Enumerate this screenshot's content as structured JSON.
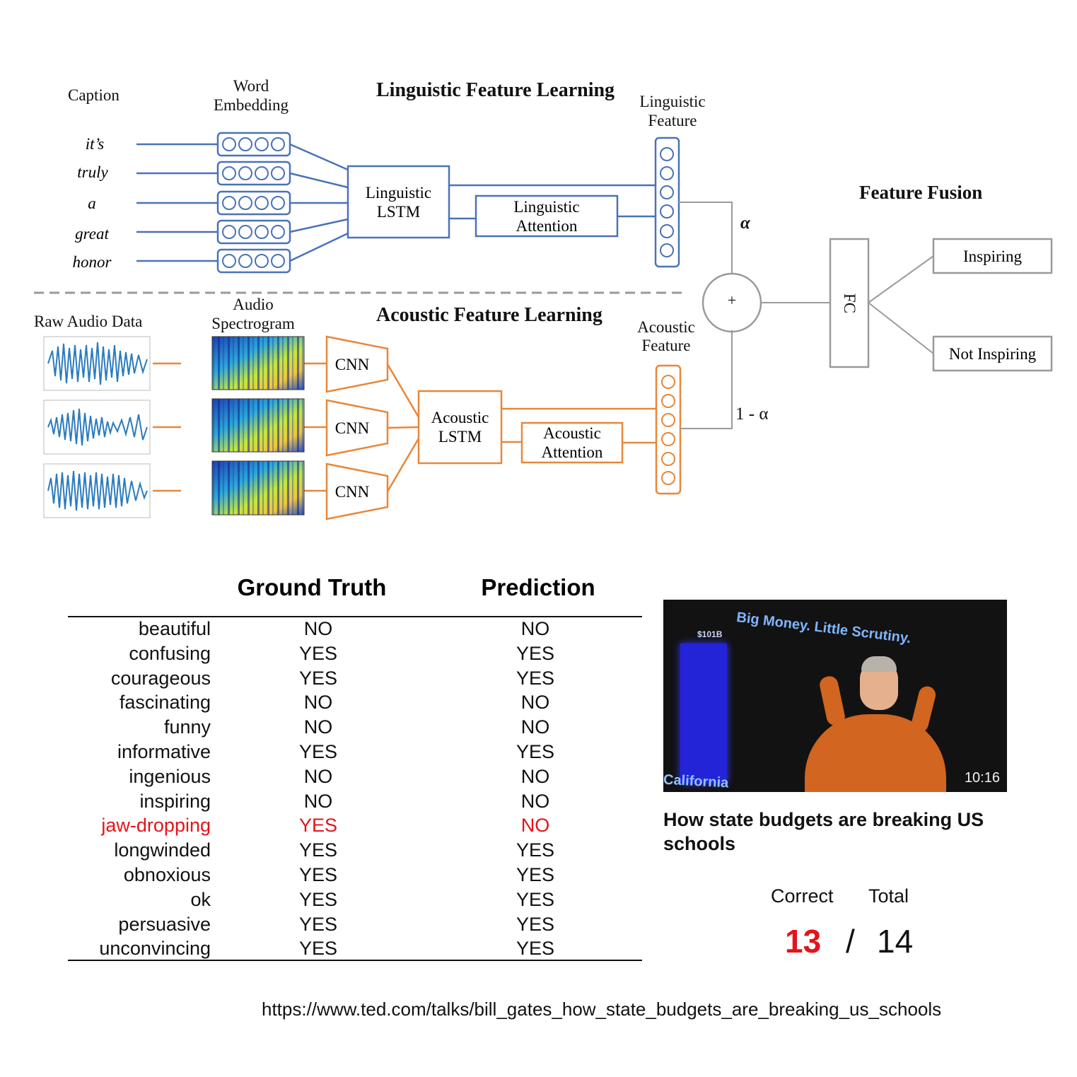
{
  "diagram": {
    "caption_label": "Caption",
    "word_embedding_label": [
      "Word",
      "Embedding"
    ],
    "linguistic_title": "Linguistic Feature Learning",
    "linguistic_feature_label": [
      "Linguistic",
      "Feature"
    ],
    "caption_words": [
      "it’s",
      "truly",
      "a",
      "great",
      "honor"
    ],
    "linguistic_lstm": [
      "Linguistic",
      "LSTM"
    ],
    "linguistic_attention": [
      "Linguistic",
      "Attention"
    ],
    "alpha": "α",
    "one_minus_alpha": "1 - α",
    "plus": "+",
    "feature_fusion_title": "Feature Fusion",
    "fc": "FC",
    "inspiring": "Inspiring",
    "not_inspiring": "Not Inspiring",
    "raw_audio_label": "Raw Audio Data",
    "audio_spectrogram_label": [
      "Audio",
      "Spectrogram"
    ],
    "acoustic_title": "Acoustic Feature Learning",
    "acoustic_feature_label": [
      "Acoustic",
      "Feature"
    ],
    "cnn_labels": [
      "CNN",
      "CNN",
      "CNN"
    ],
    "acoustic_lstm": [
      "Acoustic",
      "LSTM"
    ],
    "acoustic_attention": [
      "Acoustic",
      "Attention"
    ],
    "colors": {
      "linguistic": "#4a72b8",
      "acoustic": "#e8873a",
      "fusion": "#9a9a9a"
    }
  },
  "table": {
    "header_ground_truth": "Ground Truth",
    "header_prediction": "Prediction",
    "rows": [
      {
        "label": "beautiful",
        "gt": "NO",
        "pred": "NO"
      },
      {
        "label": "confusing",
        "gt": "YES",
        "pred": "YES"
      },
      {
        "label": "courageous",
        "gt": "YES",
        "pred": "YES"
      },
      {
        "label": "fascinating",
        "gt": "NO",
        "pred": "NO"
      },
      {
        "label": "funny",
        "gt": "NO",
        "pred": "NO"
      },
      {
        "label": "informative",
        "gt": "YES",
        "pred": "YES"
      },
      {
        "label": "ingenious",
        "gt": "NO",
        "pred": "NO"
      },
      {
        "label": "inspiring",
        "gt": "NO",
        "pred": "NO"
      },
      {
        "label": "jaw-dropping",
        "gt": "YES",
        "pred": "NO"
      },
      {
        "label": "longwinded",
        "gt": "YES",
        "pred": "YES"
      },
      {
        "label": "obnoxious",
        "gt": "YES",
        "pred": "YES"
      },
      {
        "label": "ok",
        "gt": "YES",
        "pred": "YES"
      },
      {
        "label": "persuasive",
        "gt": "YES",
        "pred": "YES"
      },
      {
        "label": "unconvincing",
        "gt": "YES",
        "pred": "YES"
      }
    ],
    "highlight_color": "#e3141b"
  },
  "video": {
    "slide_title": "Big Money. Little Scrutiny.",
    "bar_label": "$101B",
    "slide_bottom_left": "California",
    "duration": "10:16",
    "title": "How state budgets are breaking US schools"
  },
  "score": {
    "correct_label": "Correct",
    "total_label": "Total",
    "correct": "13",
    "separator": "/",
    "total": "14"
  },
  "url": "https://www.ted.com/talks/bill_gates_how_state_budgets_are_breaking_us_schools"
}
